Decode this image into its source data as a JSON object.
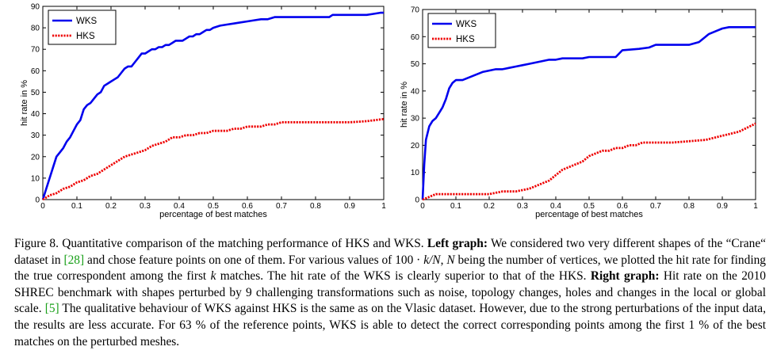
{
  "chart_data": [
    {
      "type": "line",
      "id": "left",
      "title": "",
      "xlabel": "percentage of best matches",
      "ylabel": "hit rate in %",
      "xlim": [
        0,
        1
      ],
      "ylim": [
        0,
        90
      ],
      "xticks": [
        0,
        0.1,
        0.2,
        0.3,
        0.4,
        0.5,
        0.6,
        0.7,
        0.8,
        0.9,
        1
      ],
      "xtick_labels": [
        "0",
        "0.1",
        "0.2",
        "0.3",
        "0.4",
        "0.5",
        "0.6",
        "0.7",
        "0.8",
        "0.9",
        "1"
      ],
      "yticks": [
        0,
        10,
        20,
        30,
        40,
        50,
        60,
        70,
        80,
        90
      ],
      "ytick_labels": [
        "0",
        "10",
        "20",
        "30",
        "40",
        "50",
        "60",
        "70",
        "80",
        "90"
      ],
      "legend_position": "top-left",
      "series": [
        {
          "name": "WKS",
          "color": "#0000ee",
          "style": "solid",
          "x": [
            0,
            0.01,
            0.02,
            0.03,
            0.04,
            0.05,
            0.06,
            0.07,
            0.08,
            0.09,
            0.1,
            0.11,
            0.12,
            0.13,
            0.14,
            0.15,
            0.16,
            0.17,
            0.18,
            0.19,
            0.2,
            0.21,
            0.22,
            0.23,
            0.24,
            0.25,
            0.26,
            0.27,
            0.28,
            0.29,
            0.3,
            0.31,
            0.32,
            0.33,
            0.34,
            0.35,
            0.36,
            0.37,
            0.38,
            0.39,
            0.4,
            0.41,
            0.42,
            0.43,
            0.44,
            0.45,
            0.46,
            0.47,
            0.48,
            0.49,
            0.5,
            0.52,
            0.54,
            0.56,
            0.58,
            0.6,
            0.62,
            0.64,
            0.66,
            0.68,
            0.7,
            0.75,
            0.8,
            0.84,
            0.85,
            0.9,
            0.95,
            0.97,
            0.99,
            1.0
          ],
          "y": [
            0,
            5,
            10,
            15,
            20,
            22,
            24,
            27,
            29,
            32,
            35,
            37,
            42,
            44,
            45,
            47,
            49,
            50,
            53,
            54,
            55,
            56,
            57,
            59,
            61,
            62,
            62,
            64,
            66,
            68,
            68,
            69,
            70,
            70,
            71,
            71,
            72,
            72,
            73,
            74,
            74,
            74,
            75,
            76,
            76,
            77,
            77,
            78,
            79,
            79,
            80,
            81,
            81.5,
            82,
            82.5,
            83,
            83.5,
            84,
            84,
            85,
            85,
            85,
            85,
            85,
            86,
            86,
            86,
            86.5,
            87,
            87
          ]
        },
        {
          "name": "HKS",
          "color": "#ee0000",
          "style": "dotted",
          "x": [
            0,
            0.02,
            0.04,
            0.06,
            0.08,
            0.1,
            0.12,
            0.14,
            0.16,
            0.18,
            0.2,
            0.22,
            0.24,
            0.26,
            0.28,
            0.3,
            0.32,
            0.34,
            0.36,
            0.38,
            0.4,
            0.42,
            0.44,
            0.46,
            0.48,
            0.5,
            0.52,
            0.54,
            0.56,
            0.58,
            0.6,
            0.62,
            0.64,
            0.66,
            0.68,
            0.7,
            0.75,
            0.8,
            0.85,
            0.9,
            0.95,
            1.0
          ],
          "y": [
            0,
            2,
            3,
            5,
            6,
            8,
            9,
            11,
            12,
            14,
            16,
            18,
            20,
            21,
            22,
            23,
            25,
            26,
            27,
            29,
            29,
            30,
            30,
            31,
            31,
            32,
            32,
            32,
            33,
            33,
            34,
            34,
            34,
            35,
            35,
            36,
            36,
            36,
            36,
            36,
            36.5,
            37.5
          ]
        }
      ]
    },
    {
      "type": "line",
      "id": "right",
      "title": "",
      "xlabel": "percentage of best matches",
      "ylabel": "hit rate in %",
      "xlim": [
        0,
        1
      ],
      "ylim": [
        0,
        70
      ],
      "xticks": [
        0,
        0.1,
        0.2,
        0.3,
        0.4,
        0.5,
        0.6,
        0.7,
        0.8,
        0.9,
        1
      ],
      "xtick_labels": [
        "0",
        "0.1",
        "0.2",
        "0.3",
        "0.4",
        "0.5",
        "0.6",
        "0.7",
        "0.8",
        "0.9",
        "1"
      ],
      "yticks": [
        0,
        10,
        20,
        30,
        40,
        50,
        60,
        70
      ],
      "ytick_labels": [
        "0",
        "10",
        "20",
        "30",
        "40",
        "50",
        "60",
        "70"
      ],
      "legend_position": "top-left",
      "series": [
        {
          "name": "WKS",
          "color": "#0000ee",
          "style": "solid",
          "x": [
            0,
            0.005,
            0.01,
            0.02,
            0.03,
            0.04,
            0.05,
            0.06,
            0.07,
            0.08,
            0.09,
            0.1,
            0.12,
            0.14,
            0.16,
            0.18,
            0.2,
            0.22,
            0.24,
            0.26,
            0.28,
            0.3,
            0.32,
            0.34,
            0.36,
            0.38,
            0.4,
            0.42,
            0.44,
            0.46,
            0.48,
            0.5,
            0.55,
            0.58,
            0.6,
            0.65,
            0.68,
            0.7,
            0.75,
            0.8,
            0.83,
            0.86,
            0.88,
            0.9,
            0.92,
            0.95,
            1.0
          ],
          "y": [
            0,
            13,
            22,
            27,
            29,
            30,
            32,
            34,
            37,
            41,
            43,
            44,
            44,
            45,
            46,
            47,
            47.5,
            48,
            48,
            48.5,
            49,
            49.5,
            50,
            50.5,
            51,
            51.5,
            51.5,
            52,
            52,
            52,
            52,
            52.5,
            52.5,
            52.5,
            55,
            55.5,
            56,
            57,
            57,
            57,
            58,
            61,
            62,
            63,
            63.5,
            63.5,
            63.5
          ]
        },
        {
          "name": "HKS",
          "color": "#ee0000",
          "style": "dotted",
          "x": [
            0,
            0.02,
            0.04,
            0.06,
            0.08,
            0.1,
            0.15,
            0.2,
            0.22,
            0.24,
            0.26,
            0.28,
            0.3,
            0.32,
            0.34,
            0.36,
            0.38,
            0.4,
            0.42,
            0.44,
            0.46,
            0.48,
            0.5,
            0.52,
            0.54,
            0.56,
            0.58,
            0.6,
            0.62,
            0.64,
            0.66,
            0.7,
            0.75,
            0.8,
            0.85,
            0.9,
            0.95,
            1.0
          ],
          "y": [
            0,
            1,
            2,
            2,
            2,
            2,
            2,
            2,
            2.5,
            3,
            3,
            3,
            3.5,
            4,
            5,
            6,
            7,
            9,
            11,
            12,
            13,
            14,
            16,
            17,
            18,
            18,
            19,
            19,
            20,
            20,
            21,
            21,
            21,
            21.5,
            22,
            23.5,
            25,
            28
          ]
        }
      ]
    }
  ],
  "caption": {
    "figure_label": "Figure 8.",
    "text_1": " Quantitative comparison of the matching performance of HKS and WKS. ",
    "left_bold": "Left graph:",
    "text_2": " We considered two very different shapes of the “Crane“ dataset in ",
    "ref_1": "[28]",
    "text_3": " and chose feature points on one of them. For various values of ",
    "math_1a": "100",
    "math_1b": " · ",
    "math_1c": "k/N",
    "math_1d": ", ",
    "math_1e": "N",
    "text_4": " being the number of vertices, we plotted the hit rate for finding the true correspondent among the first ",
    "math_2": "k",
    "text_5": " matches. The hit rate of the WKS is clearly superior to that of the HKS. ",
    "right_bold": "Right graph:",
    "text_6": " Hit rate on the 2010 SHREC benchmark with shapes perturbed by 9 challenging transformations such as noise, topology changes, holes and changes in the local or global scale. ",
    "ref_2": "[5]",
    "text_7": " The qualitative behaviour of WKS against HKS is the same as on the Vlasic dataset. However, due to the strong perturbations of the input data, the results are less accurate. For 63 % of the reference points, WKS is able to detect the correct corresponding points among the first 1 % of the best matches on the perturbed meshes."
  }
}
